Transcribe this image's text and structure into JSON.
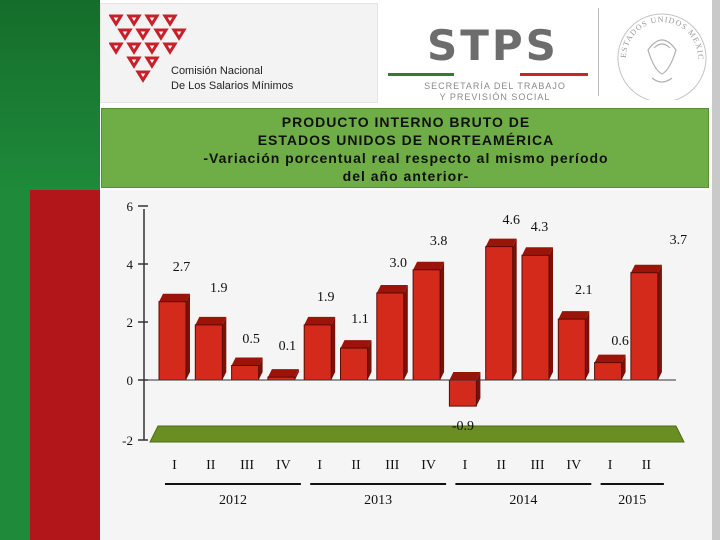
{
  "header": {
    "org_line1": "Comisión Nacional",
    "org_line2": "De Los Salarios Mínimos",
    "stps_title": "STPS",
    "stps_sub1": "SECRETARÍA DEL TRABAJO",
    "stps_sub2": "Y PREVISIÓN SOCIAL",
    "seal_text": "ESTADOS UNIDOS MEXICANOS"
  },
  "colors": {
    "bar": "#d42a1c",
    "bar_dark": "#7a1008",
    "floor": "#6b8e23",
    "title_bg": "#6fad47"
  },
  "chart_data": {
    "type": "bar",
    "title_lines": [
      "PRODUCTO INTERNO BRUTO DE",
      "ESTADOS UNIDOS DE NORTEAMÉRICA",
      "-Variación porcentual real respecto al mismo período",
      "del año anterior-"
    ],
    "categories": [
      "I",
      "II",
      "III",
      "IV",
      "I",
      "II",
      "III",
      "IV",
      "I",
      "II",
      "III",
      "IV",
      "I",
      "II"
    ],
    "years": [
      {
        "label": "2012",
        "quarters": 4
      },
      {
        "label": "2013",
        "quarters": 4
      },
      {
        "label": "2014",
        "quarters": 4
      },
      {
        "label": "2015",
        "quarters": 2
      }
    ],
    "values": [
      2.7,
      1.9,
      0.5,
      0.1,
      1.9,
      1.1,
      3.0,
      3.8,
      -0.9,
      4.6,
      4.3,
      2.1,
      0.6,
      3.7
    ],
    "value_labels": [
      "2.7",
      "1.9",
      "0.5",
      "0.1",
      "1.9",
      "1.1",
      "3.0",
      "3.8",
      "-0.9",
      "4.6",
      "4.3",
      "2.1",
      "0.6",
      "3.7"
    ],
    "yticks": [
      6,
      4,
      2,
      0,
      -2
    ],
    "ylim": [
      -2,
      6
    ],
    "grid": false
  }
}
